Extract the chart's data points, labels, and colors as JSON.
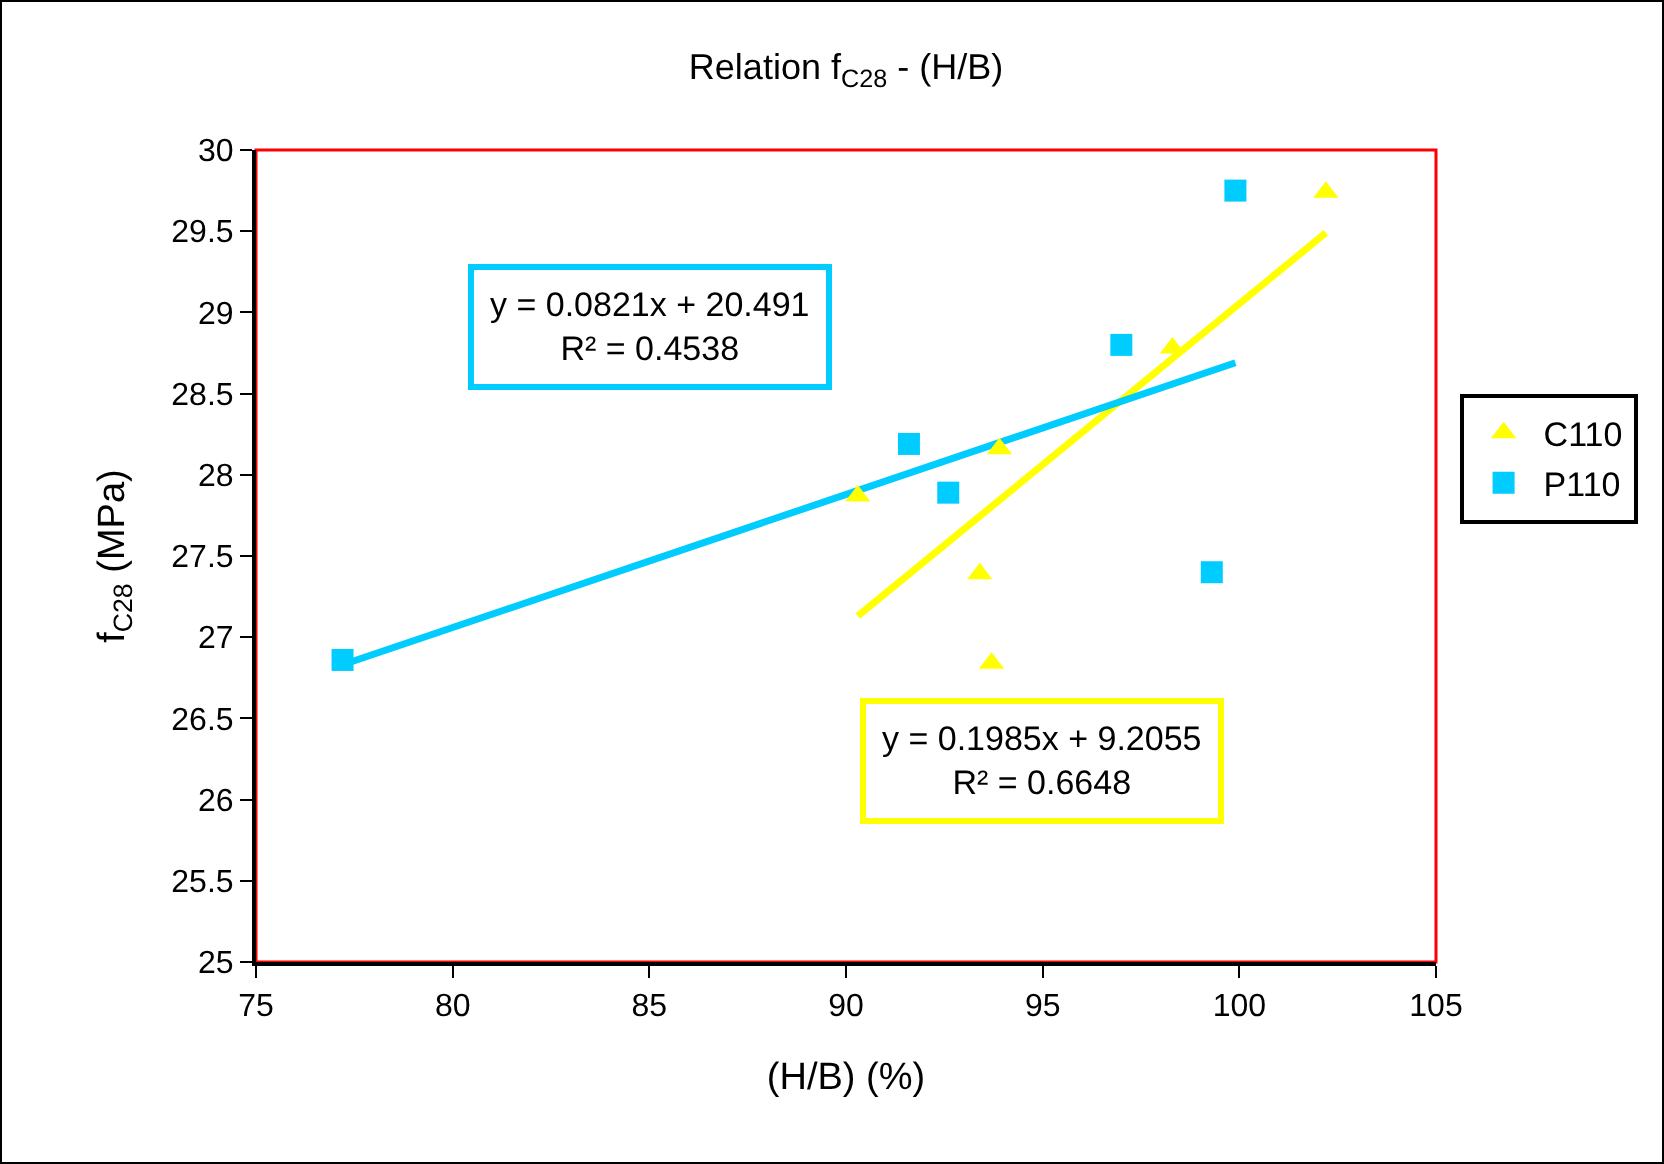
{
  "chart_data": {
    "type": "scatter",
    "title": "Relation f$_{C28}$ - (H/B)",
    "xlabel": "(H/B) (%)",
    "ylabel": "f$_{C28}$ (MPa)",
    "xlim": [
      75,
      105
    ],
    "xticks": [
      75,
      80,
      85,
      90,
      95,
      100,
      105
    ],
    "ylim": [
      25,
      30
    ],
    "yticks": [
      25,
      25.5,
      26,
      26.5,
      27,
      27.5,
      28,
      28.5,
      29,
      29.5,
      30
    ],
    "grid": false,
    "legend": "right",
    "series": [
      {
        "name": "C110",
        "color": "#ffff00",
        "marker": "triangle",
        "x": [
          90.3,
          93.4,
          93.7,
          93.9,
          98.3,
          102.2
        ],
        "values": [
          27.87,
          27.39,
          26.84,
          28.16,
          28.78,
          29.74
        ]
      },
      {
        "name": "P110",
        "color": "#00ccff",
        "marker": "square",
        "x": [
          77.2,
          91.6,
          92.6,
          97.0,
          99.3,
          99.9
        ],
        "values": [
          26.86,
          28.19,
          27.89,
          28.8,
          27.4,
          29.75
        ]
      },
      {
        "type": "line",
        "color": "#ffff00",
        "marker": "none",
        "line_style": "solid",
        "x": [
          90.3,
          102.2
        ],
        "values": [
          27.13,
          29.49
        ]
      },
      {
        "type": "line",
        "color": "#00ccff",
        "marker": "none",
        "line_style": "solid",
        "x": [
          77.2,
          99.9
        ],
        "values": [
          26.83,
          28.69
        ]
      }
    ],
    "annotations": [
      "y = 0.0821x + 20.491\nR² = 0.4538",
      "y = 0.1985x + 9.2055\nR² = 0.6648"
    ]
  }
}
